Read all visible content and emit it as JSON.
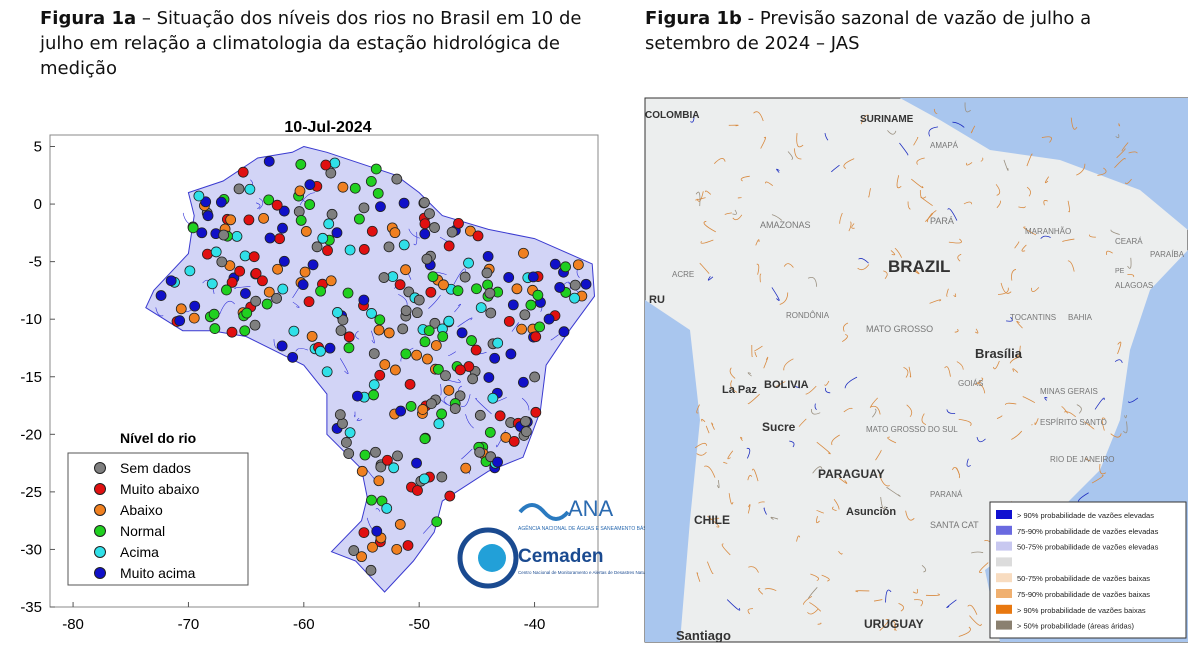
{
  "figure_1a": {
    "caption_label": "Figura 1a",
    "caption": " – Situação dos níveis dos rios no Brasil em 10 de julho em relação a climatologia da estação hidrológica de medição",
    "map_title": "10-Jul-2024",
    "xlim": [
      -82,
      -34.5
    ],
    "ylim": [
      -35,
      6
    ],
    "xticks": [
      -80,
      -70,
      -60,
      -50,
      -40
    ],
    "yticks": [
      5,
      0,
      -5,
      -10,
      -15,
      -20,
      -25,
      -30,
      -35
    ],
    "legend_title": "Nível do rio",
    "legend": [
      {
        "label": "Sem dados",
        "color": "#7f7f7f"
      },
      {
        "label": "Muito abaixo",
        "color": "#e01010"
      },
      {
        "label": "Abaixo",
        "color": "#f08020"
      },
      {
        "label": "Normal",
        "color": "#20d020"
      },
      {
        "label": "Acima",
        "color": "#30e0e8"
      },
      {
        "label": "Muito acima",
        "color": "#1010c8"
      }
    ],
    "logo_ana": "ANA",
    "logo_ana_sub": "AGÊNCIA NACIONAL DE ÁGUAS E SANEAMENTO BÁSICO",
    "logo_cemaden": "Cemaden",
    "logo_cemaden_sub": "Centro Nacional de Monitoramento e Alertas de Desastres Naturais"
  },
  "figure_1b": {
    "caption_label": "Figura 1b",
    "caption": " - Previsão sazonal de vazão de julho a setembro de 2024 – JAS",
    "places": [
      "COLOMBIA",
      "SURINAME",
      "AMAPÁ",
      "AMAZONAS",
      "PARÁ",
      "MARANHÃO",
      "CEARÁ",
      "PARAÍBA",
      "BRAZIL",
      "ACRE",
      "PE",
      "ALAGOAS",
      "RU",
      "RONDÔNIA",
      "TOCANTINS",
      "BAHIA",
      "MATO GROSSO",
      "Brasília",
      "La Paz",
      "BOLIVIA",
      "GOIÁS",
      "MINAS GERAIS",
      "Sucre",
      "MATO GROSSO DO SUL",
      "ESPÍRITO SANTO",
      "RIO DE JANEIRO",
      "PARAGUAY",
      "PARANÁ",
      "CHILE",
      "Asunción",
      "SANTA CAT",
      "Santiago",
      "URUGUAY"
    ],
    "legend": [
      {
        "label": "> 90% probabilidade de vazões elevadas",
        "color": "#1010d0"
      },
      {
        "label": "75-90% probabilidade de vazões elevadas",
        "color": "#6a6ae0"
      },
      {
        "label": "50-75% probabilidade de vazões elevadas",
        "color": "#c8c8f0"
      },
      {
        "label": "",
        "color": "#dcdcdc"
      },
      {
        "label": "50-75% probabilidade de vazões baixas",
        "color": "#f8dcc0"
      },
      {
        "label": "75-90% probabilidade de vazões baixas",
        "color": "#f0b070"
      },
      {
        "label": "> 90% probabilidade de vazões baixas",
        "color": "#e87810"
      },
      {
        "label": "> 50% probabilidade (áreas áridas)",
        "color": "#8a8070"
      }
    ]
  }
}
